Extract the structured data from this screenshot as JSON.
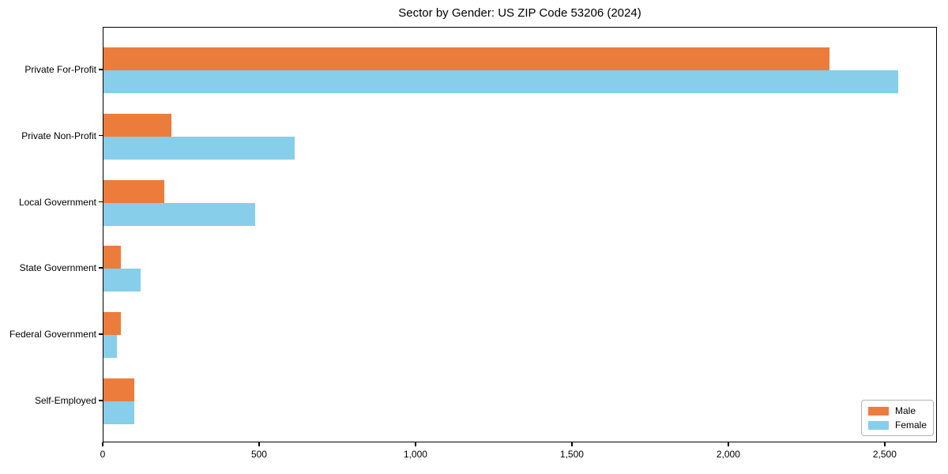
{
  "chart_data": {
    "type": "bar",
    "orientation": "horizontal",
    "title": "Sector by Gender: US ZIP Code 53206 (2024)",
    "categories": [
      "Private For-Profit",
      "Private Non-Profit",
      "Local Government",
      "State Government",
      "Federal Government",
      "Self-Employed"
    ],
    "series": [
      {
        "name": "Male",
        "color": "#EC7C3C",
        "values": [
          2320,
          218,
          195,
          56,
          56,
          99
        ]
      },
      {
        "name": "Female",
        "color": "#87CEEB",
        "values": [
          2540,
          610,
          485,
          118,
          42,
          99
        ]
      }
    ],
    "xlabel": "",
    "ylabel": "",
    "xlim": [
      0,
      2667
    ],
    "xticks": {
      "values": [
        0,
        500,
        1000,
        1500,
        2000,
        2500
      ],
      "labels": [
        "0",
        "500",
        "1,000",
        "1,500",
        "2,000",
        "2,500"
      ]
    },
    "grid": false,
    "legend": {
      "position": "lower right",
      "entries": [
        "Male",
        "Female"
      ]
    }
  }
}
